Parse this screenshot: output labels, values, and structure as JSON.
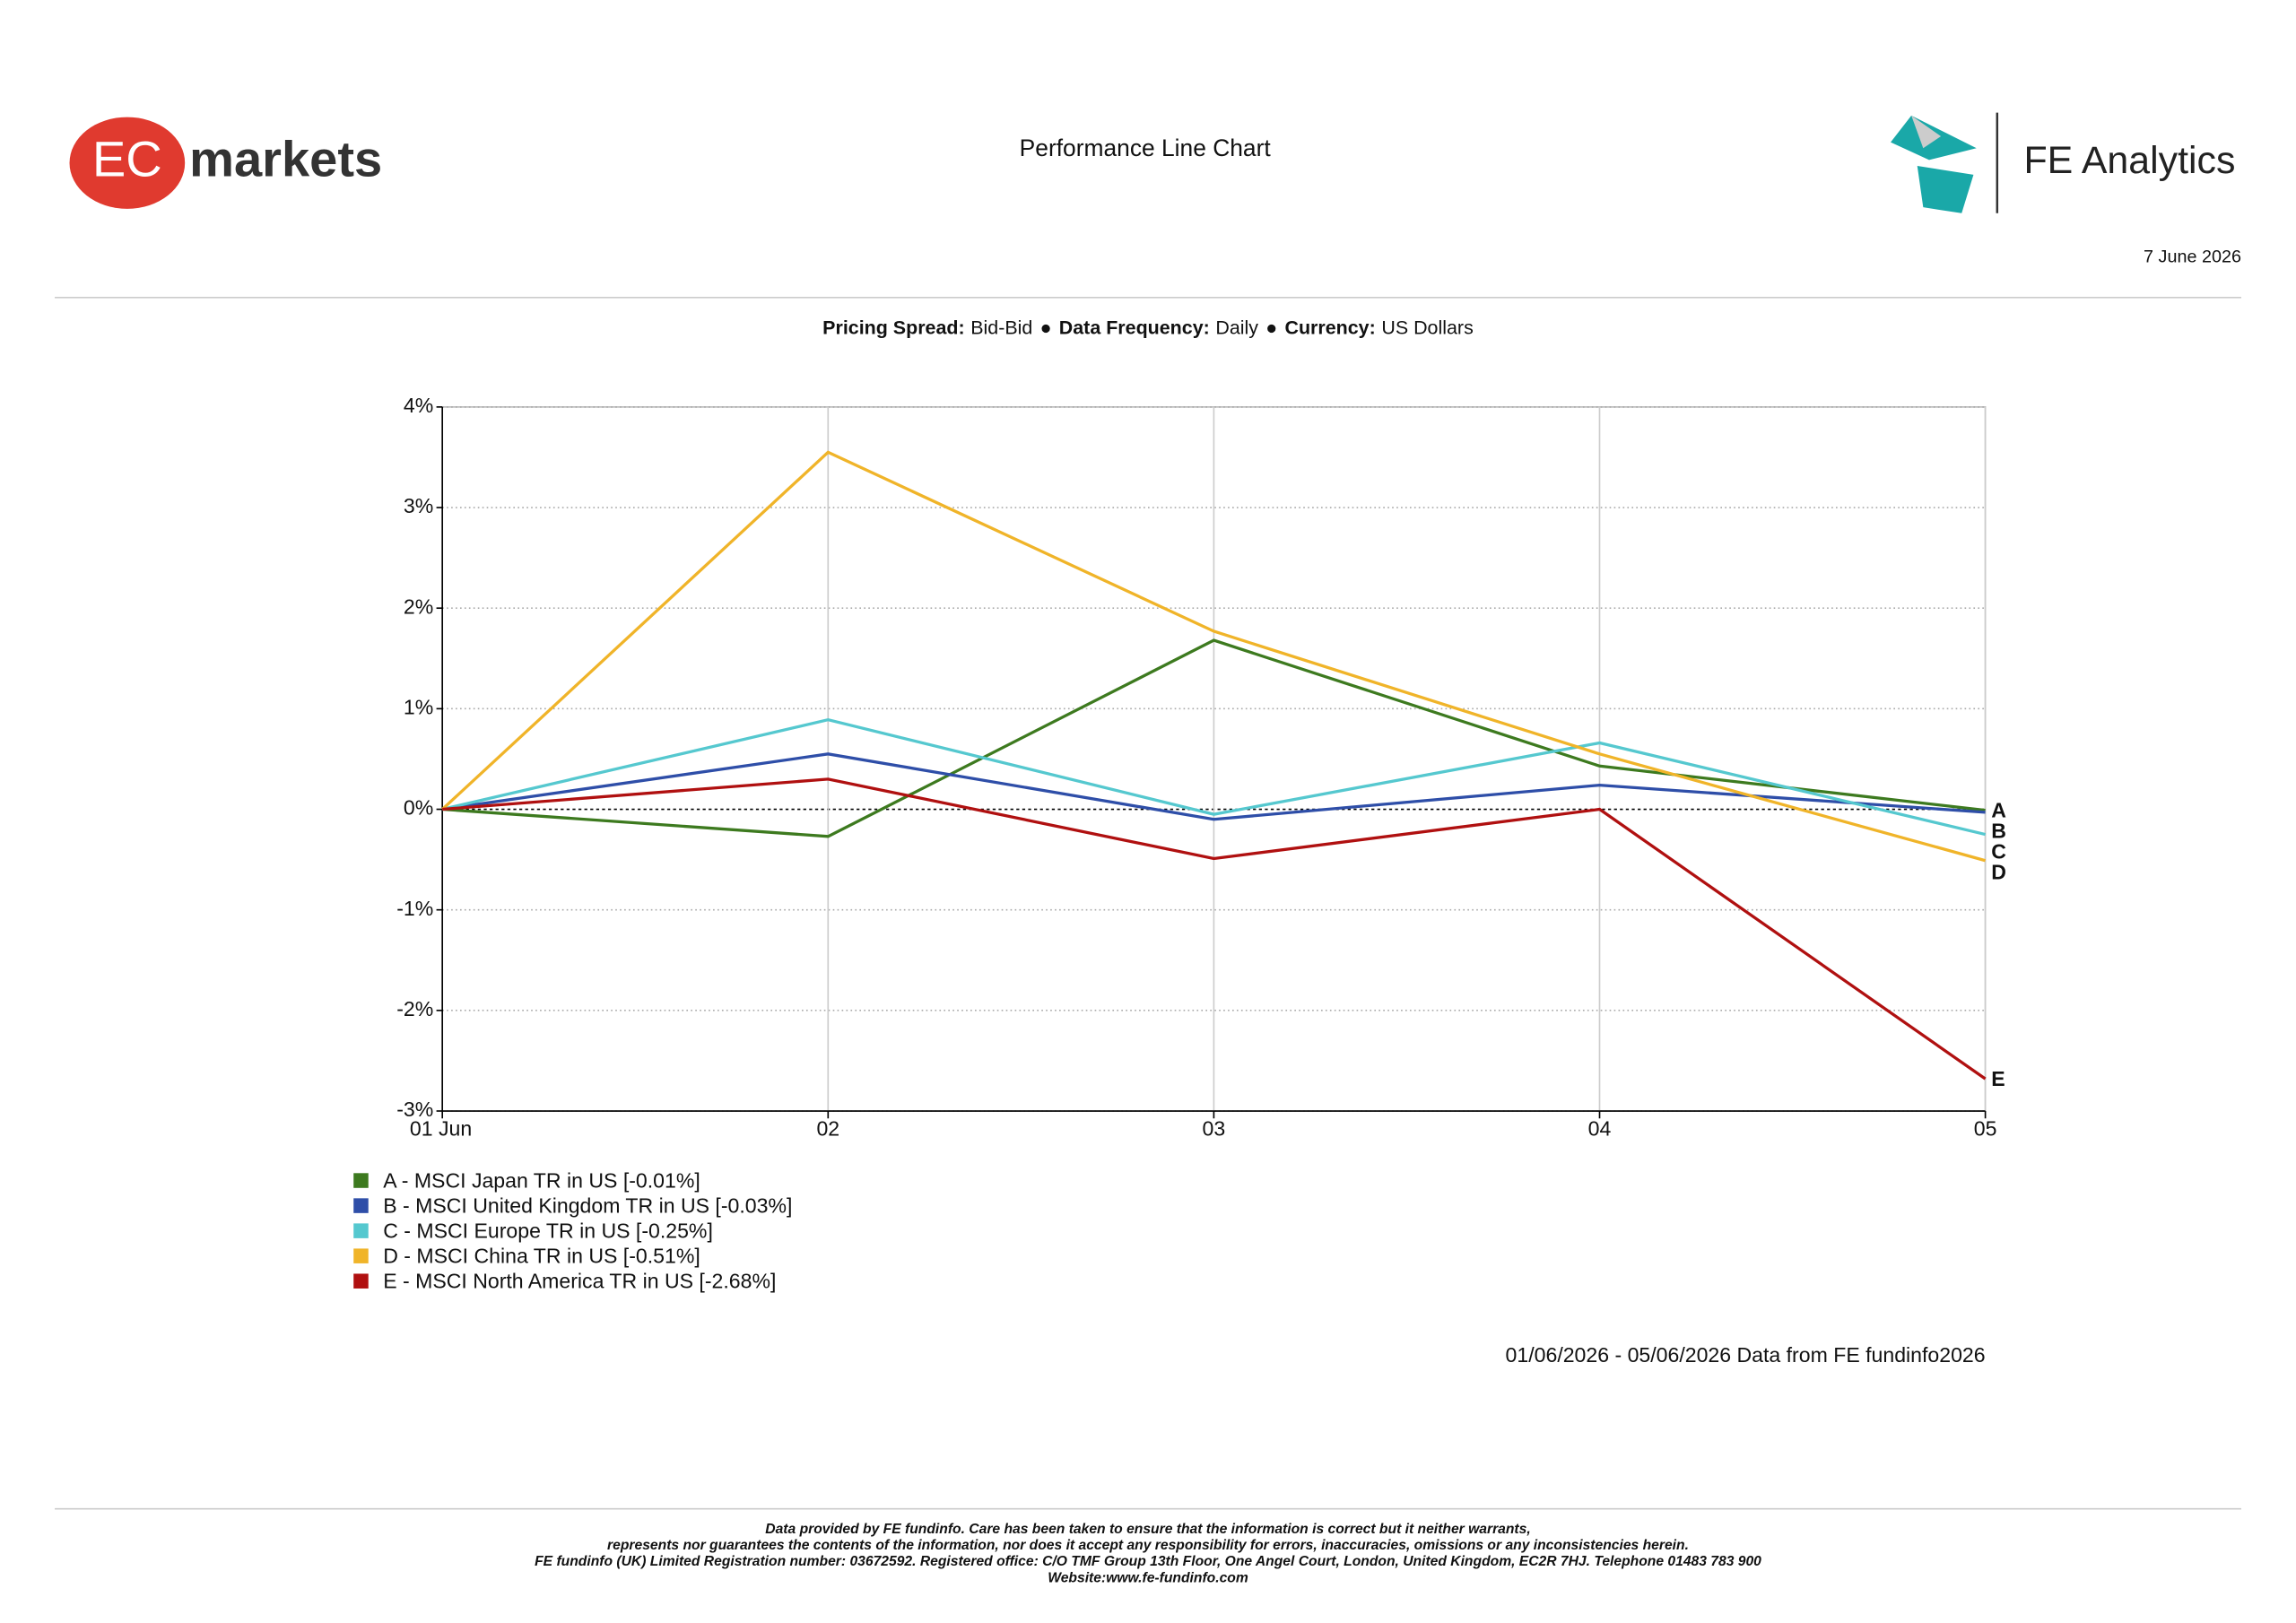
{
  "header": {
    "logo_left": {
      "mark": "EC",
      "word": "markets"
    },
    "logo_right": "FE Analytics",
    "title": "Performance Line Chart",
    "date": "7 June 2026"
  },
  "settings": [
    {
      "label": "Pricing Spread:",
      "value": "Bid-Bid"
    },
    {
      "separator": "●",
      "label": "Data Frequency:",
      "value": "Daily"
    },
    {
      "separator": "●",
      "label": "Currency:",
      "value": "US Dollars"
    }
  ],
  "chart_data": {
    "type": "line",
    "categories": [
      "01 Jun",
      "02",
      "03",
      "04",
      "05"
    ],
    "series": [
      {
        "name": "A - MSCI Japan TR in US [-0.01%]",
        "letter": "A",
        "color": "#3d7a1f",
        "values": [
          0,
          -0.27,
          1.68,
          0.43,
          -0.01
        ]
      },
      {
        "name": "B - MSCI United Kingdom TR in US [-0.03%]",
        "letter": "B",
        "color": "#2e4ea8",
        "values": [
          0,
          0.55,
          -0.1,
          0.24,
          -0.03
        ]
      },
      {
        "name": "C - MSCI Europe TR in US [-0.25%]",
        "letter": "C",
        "color": "#55c8cf",
        "values": [
          0,
          0.89,
          -0.05,
          0.66,
          -0.25
        ]
      },
      {
        "name": "D - MSCI China TR in US [-0.51%]",
        "letter": "D",
        "color": "#f0b429",
        "values": [
          0,
          3.55,
          1.77,
          0.55,
          -0.51
        ]
      },
      {
        "name": "E - MSCI North America TR in US [-2.68%]",
        "letter": "E",
        "color": "#b01010",
        "values": [
          0,
          0.3,
          -0.49,
          0,
          -2.68
        ]
      }
    ],
    "ylim": [
      -3,
      4
    ],
    "yticks": [
      {
        "value": -3,
        "label": "-3%"
      },
      {
        "value": -2,
        "label": "-2%"
      },
      {
        "value": -1,
        "label": "-1%"
      },
      {
        "value": 0,
        "label": "0%"
      },
      {
        "value": 1,
        "label": "1%"
      },
      {
        "value": 2,
        "label": "2%"
      },
      {
        "value": 3,
        "label": "3%"
      },
      {
        "value": 4,
        "label": "4%"
      }
    ],
    "grid": true,
    "source": "01/06/2026 - 05/06/2026 Data from FE fundinfo2026"
  },
  "footer": [
    "Data provided by FE fundinfo. Care has been taken to ensure that the information is correct but it neither warrants,",
    "represents nor guarantees the contents of the information, nor does it accept any responsibility for errors, inaccuracies, omissions or any inconsistencies herein.",
    "FE fundinfo (UK) Limited Registration number: 03672592. Registered office: C/O TMF Group 13th Floor, One Angel Court, London, United Kingdom, EC2R 7HJ. Telephone 01483 783 900",
    "Website:www.fe-fundinfo.com"
  ]
}
